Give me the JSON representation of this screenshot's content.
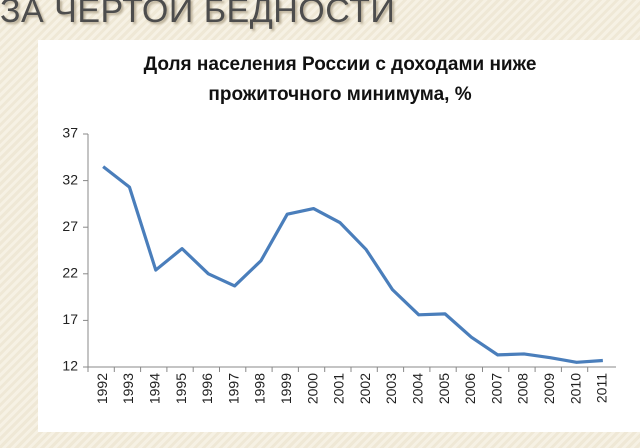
{
  "slide_title": "ЗА ЧЕРТОЙ БЕДНОСТИ",
  "chart_data": {
    "type": "line",
    "title": "Доля населения России с доходами ниже прожиточного минимума, %",
    "categories": [
      "1992",
      "1993",
      "1994",
      "1995",
      "1996",
      "1997",
      "1998",
      "1999",
      "2000",
      "2001",
      "2002",
      "2003",
      "2004",
      "2005",
      "2006",
      "2007",
      "2008",
      "2009",
      "2010",
      "2011"
    ],
    "series": [
      {
        "name": "Доля населения",
        "color": "#4a7ebb",
        "values": [
          33.5,
          31.3,
          22.4,
          24.7,
          22.0,
          20.7,
          23.4,
          28.4,
          29.0,
          27.5,
          24.6,
          20.3,
          17.6,
          17.7,
          15.2,
          13.3,
          13.4,
          13.0,
          12.5,
          12.7
        ]
      }
    ],
    "ylim": [
      12,
      37
    ],
    "yticks": [
      12,
      17,
      22,
      27,
      32,
      37
    ],
    "grid": false
  }
}
